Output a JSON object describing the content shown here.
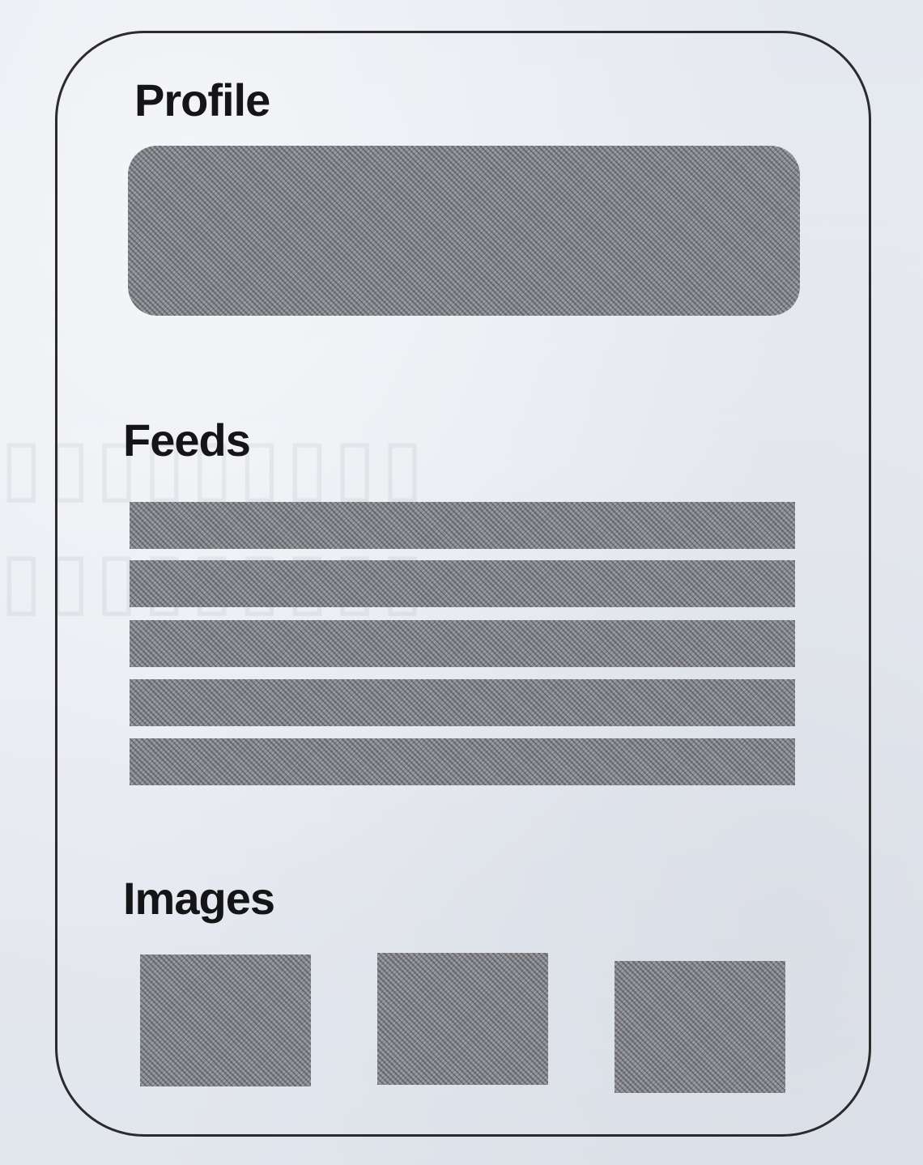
{
  "diagram": {
    "sections": {
      "profile": {
        "title": "Profile"
      },
      "feeds": {
        "title": "Feeds",
        "row_count": 5
      },
      "images": {
        "title": "Images",
        "tile_count": 3
      }
    }
  },
  "colors": {
    "page_background": "#e6e9ef",
    "card_border": "#2b2b2e",
    "placeholder_fill": "#8a8c91",
    "title_text": "#151518"
  }
}
